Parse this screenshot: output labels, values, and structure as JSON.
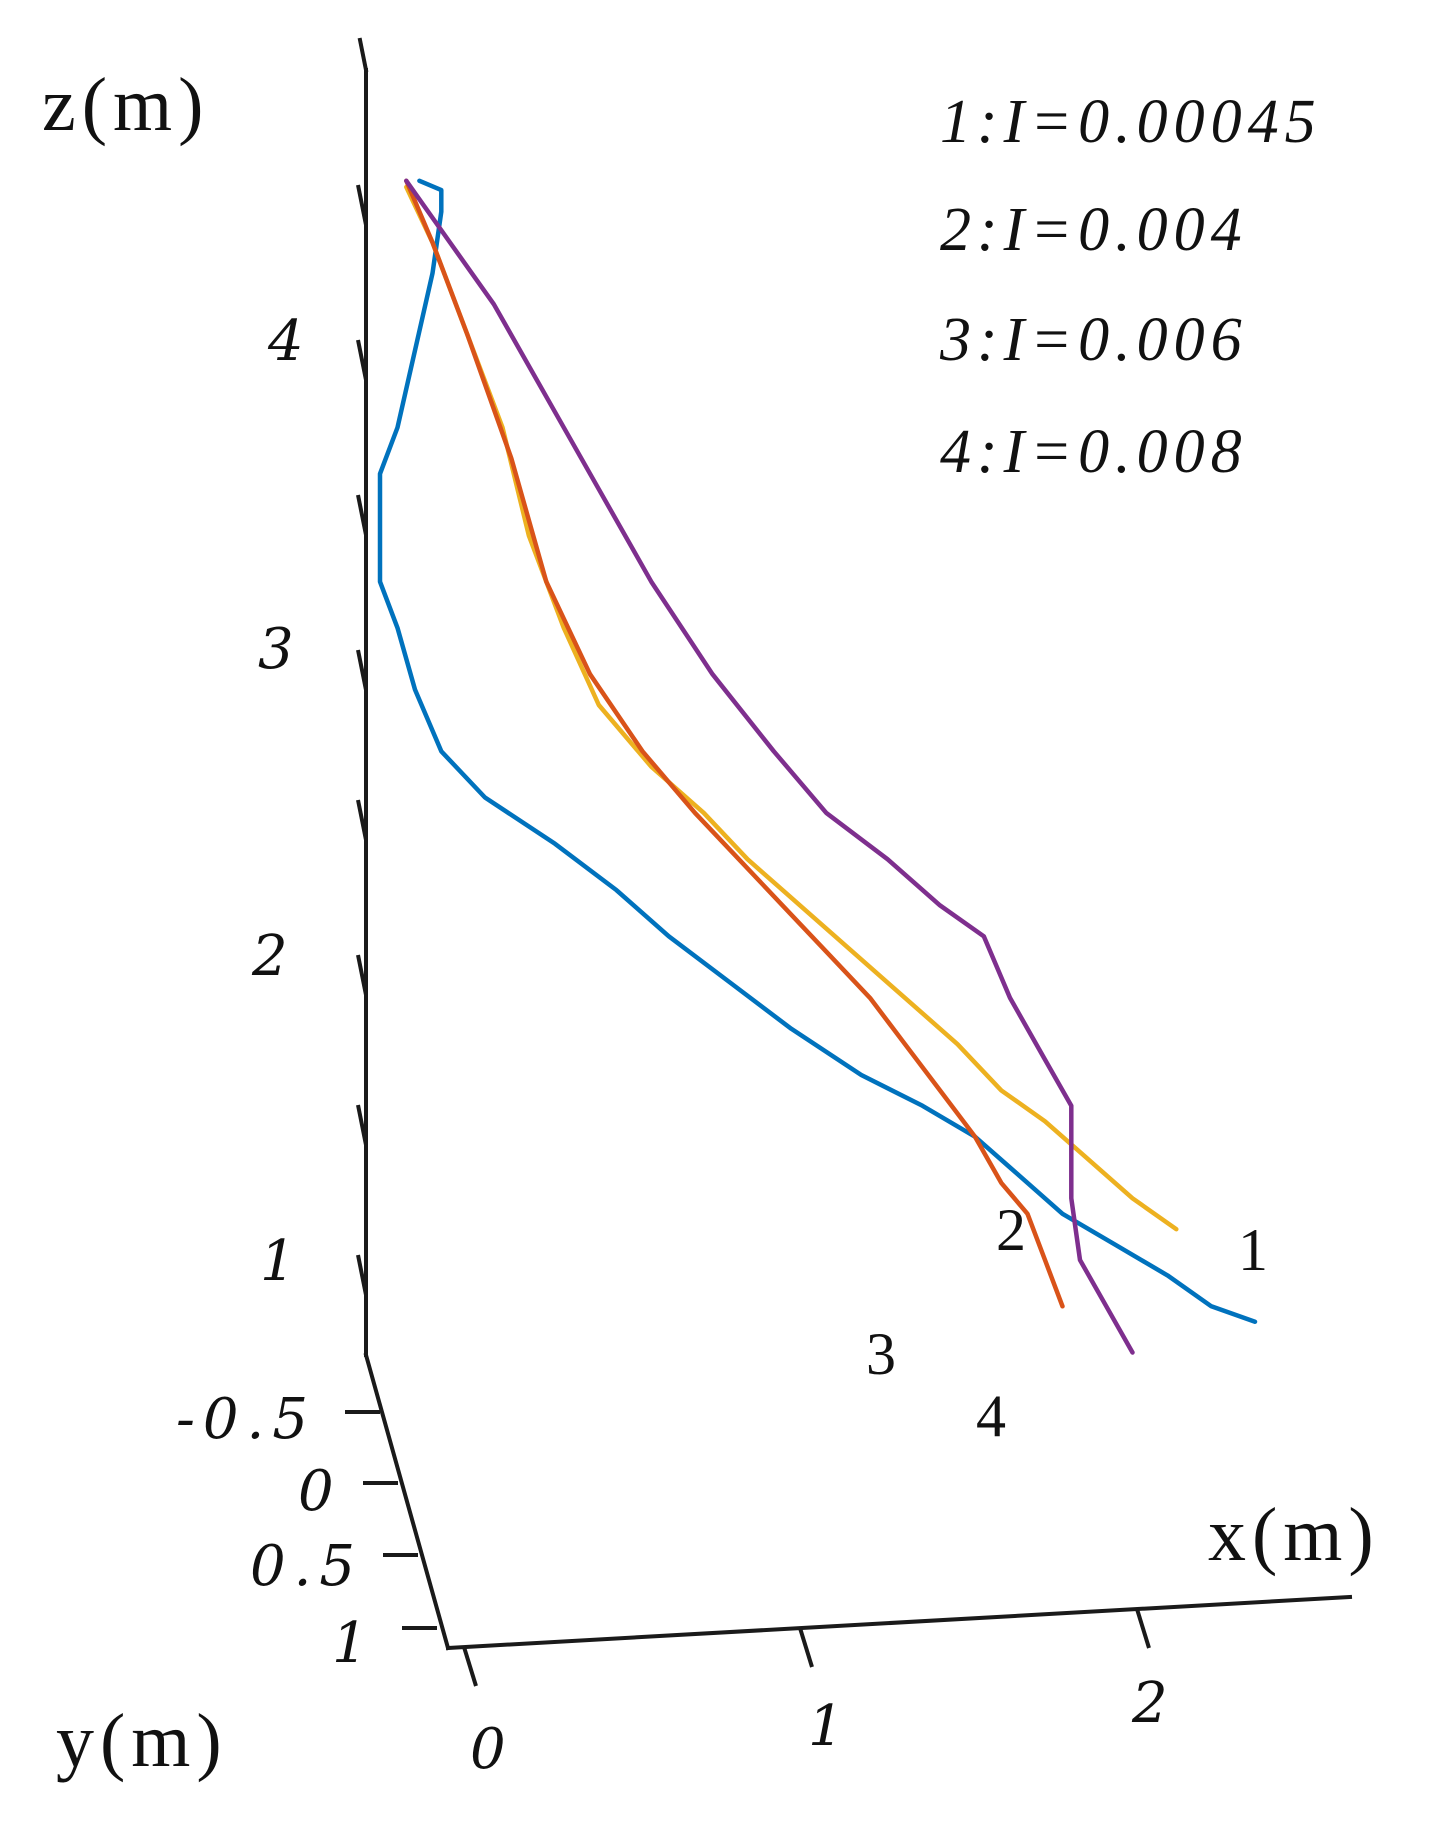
{
  "chart_data": {
    "type": "line",
    "projection": "3d",
    "axes": {
      "x": {
        "label": "x(m)",
        "ticks": [
          "0",
          "1",
          "2"
        ],
        "range": [
          0,
          2.6
        ]
      },
      "y": {
        "label": "y(m)",
        "ticks": [
          "-0.5",
          "0",
          "0.5",
          "1"
        ],
        "range": [
          -0.5,
          1
        ]
      },
      "z": {
        "label": "z(m)",
        "ticks": [
          "1",
          "2",
          "3",
          "4"
        ],
        "range": [
          0.7,
          4.8
        ]
      }
    },
    "legend": {
      "placement": "top-right",
      "entries": [
        {
          "id": "1",
          "text": "1:I=0.00045"
        },
        {
          "id": "2",
          "text": "2:I=0.004"
        },
        {
          "id": "3",
          "text": "3:I=0.006"
        },
        {
          "id": "4",
          "text": "4:I=0.008"
        }
      ]
    },
    "series": [
      {
        "name": "1:I=0.00045",
        "end_label": "1",
        "color": "#0072BD",
        "z": [
          4.5,
          4.47,
          4.4,
          4.2,
          3.95,
          3.7,
          3.55,
          3.2,
          3.05,
          2.85,
          2.65,
          2.5,
          2.35,
          2.2,
          2.05,
          1.9,
          1.75,
          1.6,
          1.5,
          1.4,
          1.3,
          1.15,
          1.05,
          0.95,
          0.85,
          0.8
        ],
        "x_screen_frac": [
          0.045,
          0.07,
          0.07,
          0.06,
          0.04,
          0.02,
          0.0,
          0.0,
          0.02,
          0.04,
          0.07,
          0.12,
          0.2,
          0.27,
          0.33,
          0.4,
          0.47,
          0.55,
          0.62,
          0.68,
          0.72,
          0.78,
          0.84,
          0.9,
          0.95,
          1.0
        ]
      },
      {
        "name": "2:I=0.004",
        "end_label": "2",
        "color": "#EDB120",
        "z": [
          4.48,
          4.3,
          4.0,
          3.7,
          3.35,
          3.05,
          2.8,
          2.6,
          2.45,
          2.3,
          2.15,
          2.0,
          1.85,
          1.7,
          1.55,
          1.45,
          1.35,
          1.2,
          1.1
        ],
        "x_screen_frac": [
          0.03,
          0.06,
          0.1,
          0.14,
          0.17,
          0.21,
          0.25,
          0.31,
          0.37,
          0.42,
          0.48,
          0.54,
          0.6,
          0.66,
          0.71,
          0.76,
          0.8,
          0.86,
          0.91
        ]
      },
      {
        "name": "3:I=0.006",
        "end_label": "3",
        "color": "#D95319",
        "z": [
          4.5,
          4.3,
          4.0,
          3.6,
          3.2,
          2.9,
          2.65,
          2.45,
          2.3,
          2.15,
          2.0,
          1.85,
          1.7,
          1.55,
          1.4,
          1.25,
          1.15,
          1.0,
          0.85
        ],
        "x_screen_frac": [
          0.03,
          0.06,
          0.1,
          0.15,
          0.19,
          0.24,
          0.3,
          0.36,
          0.41,
          0.46,
          0.51,
          0.56,
          0.6,
          0.64,
          0.68,
          0.71,
          0.74,
          0.76,
          0.78
        ]
      },
      {
        "name": "4:I=0.008",
        "end_label": "4",
        "color": "#7E2F8E",
        "z": [
          4.5,
          4.3,
          4.1,
          3.8,
          3.5,
          3.2,
          2.9,
          2.65,
          2.45,
          2.3,
          2.15,
          2.05,
          1.85,
          1.65,
          1.5,
          1.4,
          1.2,
          1.0,
          0.85,
          0.7
        ],
        "x_screen_frac": [
          0.03,
          0.08,
          0.13,
          0.19,
          0.25,
          0.31,
          0.38,
          0.45,
          0.51,
          0.58,
          0.64,
          0.69,
          0.72,
          0.76,
          0.79,
          0.79,
          0.79,
          0.8,
          0.83,
          0.86
        ]
      }
    ]
  }
}
